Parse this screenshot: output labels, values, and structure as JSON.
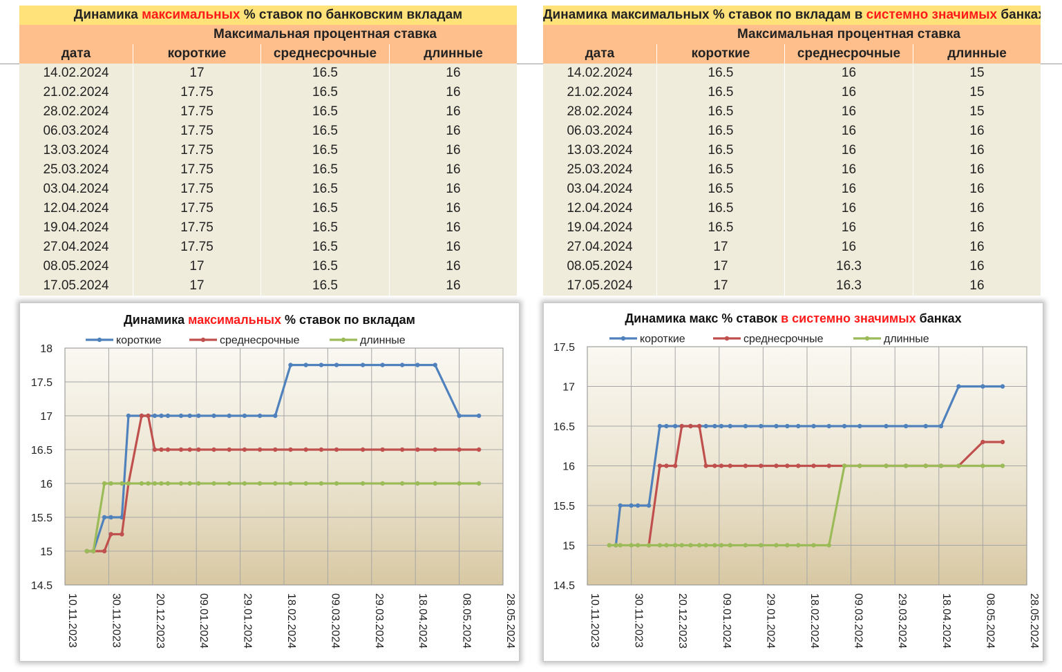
{
  "colors": {
    "short": "#4f81bd",
    "mid": "#c0504d",
    "long": "#9bbb59",
    "highlight": "#ff1a1a"
  },
  "tables": [
    {
      "title_parts": [
        {
          "text": "Динамика ",
          "red": false
        },
        {
          "text": "максимальных",
          "red": true
        },
        {
          "text": " % ставок по банковским вкладам",
          "red": false
        }
      ],
      "group_header": "Максимальная процентная ставка",
      "columns": [
        "дата",
        "короткие",
        "среднесрочные",
        "длинные"
      ],
      "rows": [
        [
          "14.02.2024",
          "17",
          "16.5",
          "16"
        ],
        [
          "21.02.2024",
          "17.75",
          "16.5",
          "16"
        ],
        [
          "28.02.2024",
          "17.75",
          "16.5",
          "16"
        ],
        [
          "06.03.2024",
          "17.75",
          "16.5",
          "16"
        ],
        [
          "13.03.2024",
          "17.75",
          "16.5",
          "16"
        ],
        [
          "25.03.2024",
          "17.75",
          "16.5",
          "16"
        ],
        [
          "03.04.2024",
          "17.75",
          "16.5",
          "16"
        ],
        [
          "12.04.2024",
          "17.75",
          "16.5",
          "16"
        ],
        [
          "19.04.2024",
          "17.75",
          "16.5",
          "16"
        ],
        [
          "27.04.2024",
          "17.75",
          "16.5",
          "16"
        ],
        [
          "08.05.2024",
          "17",
          "16.5",
          "16"
        ],
        [
          "17.05.2024",
          "17",
          "16.5",
          "16"
        ]
      ]
    },
    {
      "title_parts": [
        {
          "text": "Динамика максимальных % ставок по вкладам в ",
          "red": false
        },
        {
          "text": "системно значимых",
          "red": true
        },
        {
          "text": " банках",
          "red": false
        }
      ],
      "group_header": "Максимальная процентная ставка",
      "columns": [
        "дата",
        "короткие",
        "среднесрочные",
        "длинные"
      ],
      "rows": [
        [
          "14.02.2024",
          "16.5",
          "16",
          "15"
        ],
        [
          "21.02.2024",
          "16.5",
          "16",
          "15"
        ],
        [
          "28.02.2024",
          "16.5",
          "16",
          "15"
        ],
        [
          "06.03.2024",
          "16.5",
          "16",
          "16"
        ],
        [
          "13.03.2024",
          "16.5",
          "16",
          "16"
        ],
        [
          "25.03.2024",
          "16.5",
          "16",
          "16"
        ],
        [
          "03.04.2024",
          "16.5",
          "16",
          "16"
        ],
        [
          "12.04.2024",
          "16.5",
          "16",
          "16"
        ],
        [
          "19.04.2024",
          "16.5",
          "16",
          "16"
        ],
        [
          "27.04.2024",
          "17",
          "16",
          "16"
        ],
        [
          "08.05.2024",
          "17",
          "16.3",
          "16"
        ],
        [
          "17.05.2024",
          "17",
          "16.3",
          "16"
        ]
      ]
    }
  ],
  "chart_data": [
    {
      "type": "line",
      "title_parts": [
        {
          "text": "Динамика ",
          "red": false
        },
        {
          "text": "максимальных",
          "red": true
        },
        {
          "text": " % ставок по вкладам",
          "red": false
        }
      ],
      "legend_position": "top",
      "grid": true,
      "x_ticks": [
        "10.11.2023",
        "30.11.2023",
        "20.12.2023",
        "09.01.2024",
        "29.01.2024",
        "18.02.2024",
        "09.03.2024",
        "29.03.2024",
        "18.04.2024",
        "08.05.2024",
        "28.05.2024"
      ],
      "xlim": [
        "10.11.2023",
        "28.05.2024"
      ],
      "ylim": [
        14.5,
        18
      ],
      "y_ticks": [
        14.5,
        15,
        15.5,
        16,
        16.5,
        17,
        17.5,
        18
      ],
      "x": [
        "20.11.2023",
        "23.11.2023",
        "28.11.2023",
        "01.12.2023",
        "06.12.2023",
        "09.12.2023",
        "15.12.2023",
        "18.12.2023",
        "21.12.2023",
        "24.12.2023",
        "27.12.2023",
        "02.01.2024",
        "06.01.2024",
        "10.01.2024",
        "17.01.2024",
        "24.01.2024",
        "31.01.2024",
        "07.02.2024",
        "14.02.2024",
        "21.02.2024",
        "28.02.2024",
        "06.03.2024",
        "13.03.2024",
        "25.03.2024",
        "03.04.2024",
        "12.04.2024",
        "19.04.2024",
        "27.04.2024",
        "08.05.2024",
        "17.05.2024"
      ],
      "series": [
        {
          "name": "короткие",
          "values": [
            15,
            15,
            15.5,
            15.5,
            15.5,
            17,
            17,
            17,
            17,
            17,
            17,
            17,
            17,
            17,
            17,
            17,
            17,
            17,
            17,
            17.75,
            17.75,
            17.75,
            17.75,
            17.75,
            17.75,
            17.75,
            17.75,
            17.75,
            17,
            17
          ]
        },
        {
          "name": "среднесрочные",
          "values": [
            15,
            15,
            15,
            15.25,
            15.25,
            16,
            17,
            17,
            16.5,
            16.5,
            16.5,
            16.5,
            16.5,
            16.5,
            16.5,
            16.5,
            16.5,
            16.5,
            16.5,
            16.5,
            16.5,
            16.5,
            16.5,
            16.5,
            16.5,
            16.5,
            16.5,
            16.5,
            16.5,
            16.5
          ]
        },
        {
          "name": "длинные",
          "values": [
            15,
            15,
            16,
            16,
            16,
            16,
            16,
            16,
            16,
            16,
            16,
            16,
            16,
            16,
            16,
            16,
            16,
            16,
            16,
            16,
            16,
            16,
            16,
            16,
            16,
            16,
            16,
            16,
            16,
            16
          ]
        }
      ]
    },
    {
      "type": "line",
      "title_parts": [
        {
          "text": "Динамика макс % ставок ",
          "red": false
        },
        {
          "text": "в системно значимых",
          "red": true
        },
        {
          "text": " банках",
          "red": false
        }
      ],
      "legend_position": "top",
      "grid": true,
      "x_ticks": [
        "10.11.2023",
        "30.11.2023",
        "20.12.2023",
        "09.01.2024",
        "29.01.2024",
        "18.02.2024",
        "09.03.2024",
        "29.03.2024",
        "18.04.2024",
        "08.05.2024",
        "28.05.2024"
      ],
      "xlim": [
        "10.11.2023",
        "28.05.2024"
      ],
      "ylim": [
        14.5,
        17.5
      ],
      "y_ticks": [
        14.5,
        15,
        15.5,
        16,
        16.5,
        17,
        17.5
      ],
      "x": [
        "20.11.2023",
        "23.11.2023",
        "25.11.2023",
        "30.11.2023",
        "03.12.2023",
        "08.12.2023",
        "13.12.2023",
        "16.12.2023",
        "20.12.2023",
        "23.12.2023",
        "27.12.2023",
        "31.12.2023",
        "03.01.2024",
        "07.01.2024",
        "10.01.2024",
        "14.01.2024",
        "21.01.2024",
        "28.01.2024",
        "04.02.2024",
        "09.02.2024",
        "14.02.2024",
        "21.02.2024",
        "28.02.2024",
        "06.03.2024",
        "13.03.2024",
        "25.03.2024",
        "03.04.2024",
        "12.04.2024",
        "19.04.2024",
        "27.04.2024",
        "08.05.2024",
        "17.05.2024"
      ],
      "series": [
        {
          "name": "короткие",
          "values": [
            null,
            15,
            15.5,
            15.5,
            15.5,
            15.5,
            16.5,
            16.5,
            16.5,
            16.5,
            16.5,
            16.5,
            16.5,
            16.5,
            16.5,
            16.5,
            16.5,
            16.5,
            16.5,
            16.5,
            16.5,
            16.5,
            16.5,
            16.5,
            16.5,
            16.5,
            16.5,
            16.5,
            16.5,
            17,
            17,
            17
          ]
        },
        {
          "name": "среднесрочные",
          "values": [
            null,
            null,
            null,
            null,
            null,
            15,
            16,
            16,
            16,
            16.5,
            16.5,
            16.5,
            16,
            16,
            16,
            16,
            16,
            16,
            16,
            16,
            16,
            16,
            16,
            16,
            16,
            16,
            16,
            16,
            16,
            16,
            16.3,
            16.3
          ]
        },
        {
          "name": "длинные",
          "values": [
            15,
            15,
            15,
            15,
            15,
            15,
            15,
            15,
            15,
            15,
            15,
            15,
            15,
            15,
            15,
            15,
            15,
            15,
            15,
            15,
            15,
            15,
            15,
            16,
            16,
            16,
            16,
            16,
            16,
            16,
            16,
            16
          ]
        }
      ]
    }
  ]
}
